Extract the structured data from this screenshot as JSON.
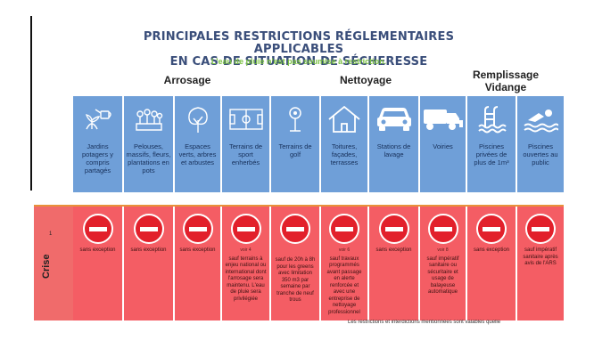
{
  "header": {
    "title_line1": "PRINCIPALES RESTRICTIONS RÉGLEMENTAIRES APPLICABLES",
    "title_line2": "EN CAS DE SITUATION DE SÉCHERESSE",
    "subtitle": "L'eau de pluie n'est pas soumise à restriction."
  },
  "sections": {
    "arrosage": "Arrosage",
    "nettoyage": "Nettoyage",
    "remplissage_line1": "Remplissage",
    "remplissage_line2": "Vidange"
  },
  "columns": [
    {
      "label": "Jardins potagers y compris partagés",
      "icon": "watering-can-icon"
    },
    {
      "label": "Pelouses, massifs, fleurs, plantations en pots",
      "icon": "flowerbed-icon"
    },
    {
      "label": "Espaces verts, arbres et arbustes",
      "icon": "tree-icon"
    },
    {
      "label": "Terrains de sport enherbés",
      "icon": "sport-field-icon"
    },
    {
      "label": "Terrains de golf",
      "icon": "golf-flag-icon"
    },
    {
      "label": "Toitures, façades, terrasses",
      "icon": "house-icon"
    },
    {
      "label": "Stations de lavage",
      "icon": "car-icon"
    },
    {
      "label": "Voiries",
      "icon": "street-sweeper-icon"
    },
    {
      "label": "Piscines privées de plus de 1m³",
      "icon": "pool-ladder-icon"
    },
    {
      "label": "Piscines ouvertes au public",
      "icon": "swimmer-icon"
    }
  ],
  "crise": {
    "label": "Crise",
    "marker": "1",
    "cells": [
      {
        "note": "",
        "text": "sans exception"
      },
      {
        "note": "",
        "text": "sans exception"
      },
      {
        "note": "",
        "text": "sans exception"
      },
      {
        "note": "voir 4",
        "text": "sauf terrains à enjeu national ou international dont l'arrosage sera maintenu. L'eau de pluie sera privilégiée"
      },
      {
        "note": "",
        "text": "sauf de 20h à 8h pour les greens avec limitation 350 m3 par semaine par tranche de neuf trous"
      },
      {
        "note": "voir 6",
        "text": "sauf travaux programmés avant passage en alerte renforcée et avec une entreprise de nettoyage professionnel"
      },
      {
        "note": "",
        "text": "sans exception"
      },
      {
        "note": "voir 8",
        "text": "sauf impératif sanitaire ou sécuritaire et usage de balayeuse automatique"
      },
      {
        "note": "",
        "text": "sans exception"
      },
      {
        "note": "",
        "text": "sauf impératif sanitaire après avis de l'ARS"
      }
    ]
  },
  "footer": "Les restrictions et interdictions mentionnées sont valables quelle"
}
